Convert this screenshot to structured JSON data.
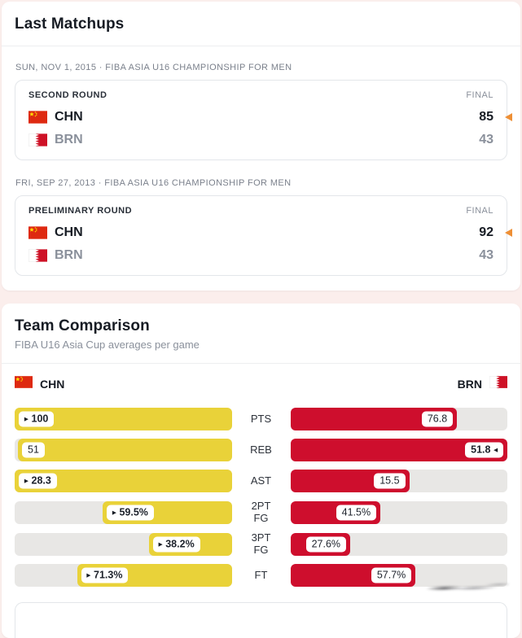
{
  "icons": {
    "home_winner_arrow": "▸",
    "away_winner_arrow": "◂",
    "score_winner_arrow": "left-triangle",
    "china_flag": "china-flag",
    "bahrain_flag": "bahrain-flag"
  },
  "colors": {
    "home_bar": "#e9d239",
    "away_bar": "#ce0e2d",
    "winner_marker_orange": "#ee8f35",
    "bar_track": "#e8e7e5",
    "page_background": "#fbeeec"
  },
  "matchups": {
    "title": "Last Matchups",
    "games": [
      {
        "date_line": "SUN, NOV 1, 2015 · FIBA ASIA U16 CHAMPIONSHIP FOR MEN",
        "round": "SECOND ROUND",
        "status": "FINAL",
        "home": {
          "code": "CHN",
          "score": "85",
          "winner": true
        },
        "away": {
          "code": "BRN",
          "score": "43",
          "winner": false
        }
      },
      {
        "date_line": "FRI, SEP 27, 2013 · FIBA ASIA U16 CHAMPIONSHIP FOR MEN",
        "round": "PRELIMINARY ROUND",
        "status": "FINAL",
        "home": {
          "code": "CHN",
          "score": "92",
          "winner": true
        },
        "away": {
          "code": "BRN",
          "score": "43",
          "winner": false
        }
      }
    ]
  },
  "comparison": {
    "title": "Team Comparison",
    "subtitle": "FIBA U16 Asia Cup averages per game",
    "legend": {
      "home": "CHN",
      "away": "BRN"
    },
    "chart_type": "paired-horizontal-bar",
    "rows": [
      {
        "label": "PTS",
        "home": {
          "display": "100",
          "bar_pct": 100,
          "winner": true
        },
        "away": {
          "display": "76.8",
          "bar_pct": 76.8,
          "winner": false
        }
      },
      {
        "label": "REB",
        "home": {
          "display": "51",
          "bar_pct": 98.5,
          "winner": false
        },
        "away": {
          "display": "51.8",
          "bar_pct": 100,
          "winner": true
        }
      },
      {
        "label": "AST",
        "home": {
          "display": "28.3",
          "bar_pct": 100,
          "winner": true
        },
        "away": {
          "display": "15.5",
          "bar_pct": 54.8,
          "winner": false
        }
      },
      {
        "label": "2PT\nFG",
        "home": {
          "display": "59.5%",
          "bar_pct": 59.5,
          "winner": true
        },
        "away": {
          "display": "41.5%",
          "bar_pct": 41.5,
          "winner": false
        }
      },
      {
        "label": "3PT\nFG",
        "home": {
          "display": "38.2%",
          "bar_pct": 38.2,
          "winner": true
        },
        "away": {
          "display": "27.6%",
          "bar_pct": 27.6,
          "winner": false
        }
      },
      {
        "label": "FT",
        "home": {
          "display": "71.3%",
          "bar_pct": 71.3,
          "winner": true
        },
        "away": {
          "display": "57.7%",
          "bar_pct": 57.7,
          "winner": false
        }
      }
    ]
  }
}
